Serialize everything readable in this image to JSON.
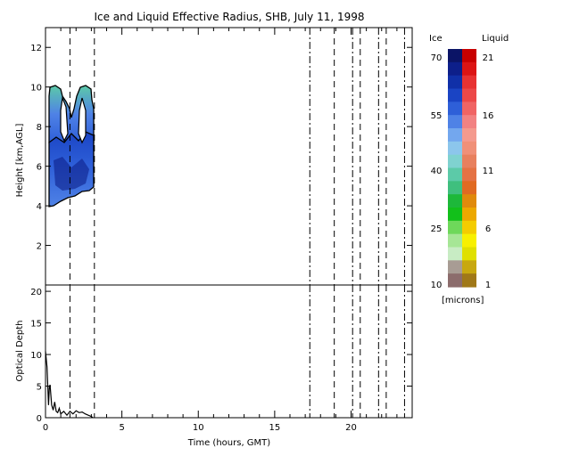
{
  "chart_data": [
    {
      "type": "heatmap",
      "title": "Ice and Liquid Effective Radius, SHB, July 11, 1998",
      "xlabel": "",
      "ylabel": "Height [km,AGL]",
      "xlim": [
        0,
        24
      ],
      "ylim": [
        0,
        13
      ],
      "yticks": [
        2,
        4,
        6,
        8,
        10,
        12
      ],
      "cloud_regions": [
        {
          "name": "",
          "x_start": 0.3,
          "x_end": 3.1,
          "y_bottom": 4.1,
          "y_top": 7.5,
          "radius_range_microns": [
            50,
            65
          ]
        },
        {
          "name": "",
          "x_start": 0.3,
          "x_end": 3.1,
          "y_bottom": 7.5,
          "y_top": 10.0,
          "radius_range_microns": [
            35,
            45
          ]
        }
      ],
      "reference_lines_x": [
        1.6,
        3.2,
        17.3,
        18.9,
        20.1,
        20.6,
        21.8,
        22.3,
        23.5
      ],
      "grid": false
    },
    {
      "type": "line",
      "title": "",
      "xlabel": "Time (hours, GMT)",
      "ylabel": "Optical Depth",
      "xlim": [
        0,
        24
      ],
      "ylim": [
        0,
        21
      ],
      "xticks": [
        0,
        5,
        10,
        15,
        20
      ],
      "yticks": [
        0,
        5,
        10,
        15,
        20
      ],
      "x": [
        0.0,
        0.1,
        0.2,
        0.25,
        0.3,
        0.4,
        0.5,
        0.6,
        0.7,
        0.8,
        0.9,
        1.0,
        1.2,
        1.4,
        1.6,
        1.8,
        2.0,
        2.2,
        2.4,
        2.6,
        2.8,
        3.0,
        3.1
      ],
      "y": [
        10.5,
        8.0,
        2.0,
        4.8,
        5.2,
        2.0,
        1.2,
        2.5,
        1.0,
        0.8,
        1.5,
        0.6,
        1.0,
        0.4,
        1.0,
        0.6,
        1.1,
        0.8,
        0.9,
        0.6,
        0.4,
        0.2,
        0.0
      ],
      "reference_lines_x": [
        1.6,
        3.2,
        17.3,
        18.9,
        20.1,
        20.6,
        21.8,
        22.3,
        23.5
      ],
      "grid": false
    }
  ],
  "colorbar": {
    "ice_label": "Ice",
    "liquid_label": "Liquid",
    "units_label": "[microns]",
    "ice_ticks": [
      "70",
      "55",
      "40",
      "25",
      "10"
    ],
    "liquid_ticks": [
      "21",
      "16",
      "11",
      "6",
      "1"
    ],
    "ice_colors": [
      "#0b1466",
      "#0d1f8a",
      "#1030a8",
      "#1a44c4",
      "#2e5fd8",
      "#4f82e6",
      "#73a7ee",
      "#8cc6ec",
      "#7fd2d0",
      "#5ccaa8",
      "#3fbf7e",
      "#1db83a",
      "#12c01a",
      "#6ed85a",
      "#a6e696",
      "#c8ecc4",
      "#a89c94",
      "#8c6c6c"
    ],
    "liquid_colors": [
      "#c80000",
      "#dc1414",
      "#e83232",
      "#ec4848",
      "#f06464",
      "#f28282",
      "#f49a8e",
      "#f09078",
      "#e8805e",
      "#e47244",
      "#e06a22",
      "#e08a0c",
      "#eca800",
      "#f4cc00",
      "#f8f000",
      "#e0e000",
      "#c8a810",
      "#a07818"
    ]
  }
}
